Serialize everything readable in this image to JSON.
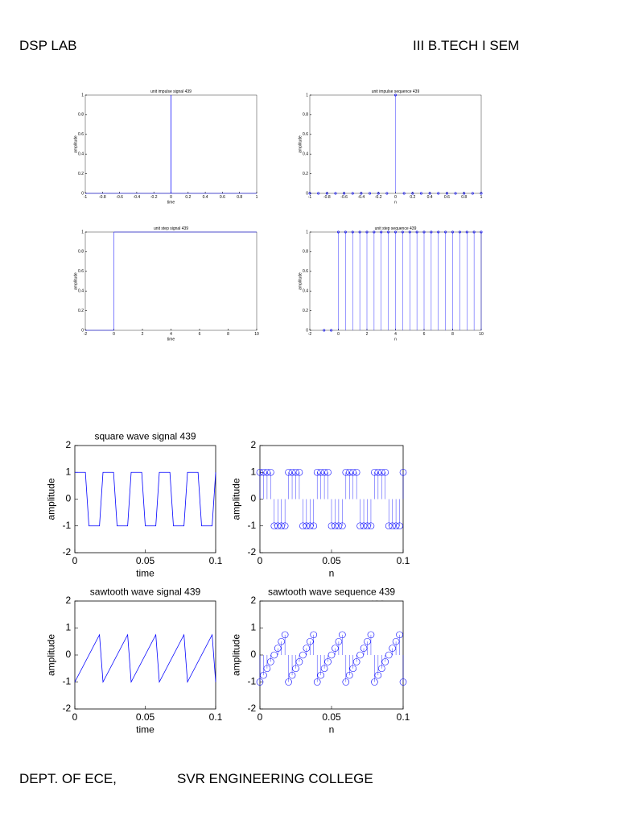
{
  "header": {
    "left": "DSP LAB",
    "right": "III B.TECH I SEM"
  },
  "footer": {
    "left": "DEPT. OF ECE,",
    "right": "SVR ENGINEERING COLLEGE"
  },
  "chart_data": [
    {
      "type": "line",
      "title": "unit impulse signal 439",
      "xlabel": "time",
      "ylabel": "amplitude",
      "color": "#0000ff",
      "x": [
        -1,
        0,
        0,
        0,
        1
      ],
      "values": [
        0,
        0,
        1,
        0,
        0
      ],
      "xlim": [
        -1,
        1
      ],
      "xticks": [
        -1,
        -0.8,
        -0.6,
        -0.4,
        -0.2,
        0,
        0.2,
        0.4,
        0.6,
        0.8,
        1
      ],
      "ylim": [
        0,
        1
      ],
      "yticks": [
        0,
        0.2,
        0.4,
        0.6,
        0.8,
        1
      ]
    },
    {
      "type": "stem",
      "title": "unit impulse sequence 439",
      "xlabel": "n",
      "ylabel": "amplitude",
      "color": "#0000ff",
      "x": [
        -1,
        -0.9,
        -0.8,
        -0.7,
        -0.6,
        -0.5,
        -0.4,
        -0.3,
        -0.2,
        -0.1,
        0,
        0.1,
        0.2,
        0.3,
        0.4,
        0.5,
        0.6,
        0.7,
        0.8,
        0.9,
        1
      ],
      "values": [
        0,
        0,
        0,
        0,
        0,
        0,
        0,
        0,
        0,
        0,
        1,
        0,
        0,
        0,
        0,
        0,
        0,
        0,
        0,
        0,
        0
      ],
      "xlim": [
        -1,
        1
      ],
      "xticks": [
        -1,
        -0.8,
        -0.6,
        -0.4,
        -0.2,
        0,
        0.2,
        0.4,
        0.6,
        0.8,
        1
      ],
      "ylim": [
        0,
        1
      ],
      "yticks": [
        0,
        0.2,
        0.4,
        0.6,
        0.8,
        1
      ]
    },
    {
      "type": "line",
      "title": "unit step signal 439",
      "xlabel": "time",
      "ylabel": "amplitude",
      "color": "#0000ff",
      "x": [
        -2,
        0,
        0,
        10
      ],
      "values": [
        0,
        0,
        1,
        1
      ],
      "xlim": [
        -2,
        10
      ],
      "xticks": [
        -2,
        0,
        2,
        4,
        6,
        8,
        10
      ],
      "ylim": [
        0,
        1
      ],
      "yticks": [
        0,
        0.2,
        0.4,
        0.6,
        0.8,
        1
      ]
    },
    {
      "type": "stem",
      "title": "unit step sequence 439",
      "xlabel": "n",
      "ylabel": "amplitude",
      "color": "#0000ff",
      "x": [
        -1,
        -0.5,
        0,
        0.5,
        1,
        1.5,
        2,
        2.5,
        3,
        3.5,
        4,
        4.5,
        5,
        5.5,
        6,
        6.5,
        7,
        7.5,
        8,
        8.5,
        9,
        9.5,
        10
      ],
      "values": [
        0,
        0,
        1,
        1,
        1,
        1,
        1,
        1,
        1,
        1,
        1,
        1,
        1,
        1,
        1,
        1,
        1,
        1,
        1,
        1,
        1,
        1,
        1
      ],
      "xlim": [
        -2,
        10
      ],
      "xticks": [
        -2,
        0,
        2,
        4,
        6,
        8,
        10
      ],
      "ylim": [
        0,
        1
      ],
      "yticks": [
        0,
        0.2,
        0.4,
        0.6,
        0.8,
        1
      ]
    },
    {
      "type": "line",
      "title": "square wave signal 439",
      "xlabel": "time",
      "ylabel": "amplitude",
      "color": "#0000ff",
      "x": [
        0,
        0.0025,
        0.005,
        0.0075,
        0.01,
        0.0125,
        0.015,
        0.0175,
        0.02,
        0.0225,
        0.025,
        0.0275,
        0.03,
        0.0325,
        0.035,
        0.0375,
        0.04,
        0.0425,
        0.045,
        0.0475,
        0.05,
        0.0525,
        0.055,
        0.0575,
        0.06,
        0.0625,
        0.065,
        0.0675,
        0.07,
        0.0725,
        0.075,
        0.0775,
        0.08,
        0.0825,
        0.085,
        0.0875,
        0.09,
        0.0925,
        0.095,
        0.0975,
        0.1
      ],
      "values": [
        1,
        1,
        1,
        1,
        -1,
        -1,
        -1,
        -1,
        1,
        1,
        1,
        1,
        -1,
        -1,
        -1,
        -1,
        1,
        1,
        1,
        1,
        -1,
        -1,
        -1,
        -1,
        1,
        1,
        1,
        1,
        -1,
        -1,
        -1,
        -1,
        1,
        1,
        1,
        1,
        -1,
        -1,
        -1,
        -1,
        1
      ],
      "xlim": [
        0,
        0.1
      ],
      "xticks": [
        0,
        0.05,
        0.1
      ],
      "ylim": [
        -2,
        2
      ],
      "yticks": [
        -2,
        -1,
        0,
        1,
        2
      ]
    },
    {
      "type": "stem",
      "title": "square wave sequence 439",
      "xlabel": "n",
      "ylabel": "amplitude",
      "color": "#0000ff",
      "x": [
        0,
        0.0025,
        0.005,
        0.0075,
        0.01,
        0.0125,
        0.015,
        0.0175,
        0.02,
        0.0225,
        0.025,
        0.0275,
        0.03,
        0.0325,
        0.035,
        0.0375,
        0.04,
        0.0425,
        0.045,
        0.0475,
        0.05,
        0.0525,
        0.055,
        0.0575,
        0.06,
        0.0625,
        0.065,
        0.0675,
        0.07,
        0.0725,
        0.075,
        0.0775,
        0.08,
        0.0825,
        0.085,
        0.0875,
        0.09,
        0.0925,
        0.095,
        0.0975,
        0.1
      ],
      "values": [
        1,
        1,
        1,
        1,
        -1,
        -1,
        -1,
        -1,
        1,
        1,
        1,
        1,
        -1,
        -1,
        -1,
        -1,
        1,
        1,
        1,
        1,
        -1,
        -1,
        -1,
        -1,
        1,
        1,
        1,
        1,
        -1,
        -1,
        -1,
        -1,
        1,
        1,
        1,
        1,
        -1,
        -1,
        -1,
        -1,
        1
      ],
      "xlim": [
        0,
        0.1
      ],
      "xticks": [
        0,
        0.05,
        0.1
      ],
      "ylim": [
        -2,
        2
      ],
      "yticks": [
        -2,
        -1,
        0,
        1,
        2
      ]
    },
    {
      "type": "line",
      "title": "sawtooth wave signal 439",
      "xlabel": "time",
      "ylabel": "amplitude",
      "color": "#0000ff",
      "x": [
        0,
        0.0025,
        0.005,
        0.0075,
        0.01,
        0.0125,
        0.015,
        0.0175,
        0.02,
        0.0225,
        0.025,
        0.0275,
        0.03,
        0.0325,
        0.035,
        0.0375,
        0.04,
        0.0425,
        0.045,
        0.0475,
        0.05,
        0.0525,
        0.055,
        0.0575,
        0.06,
        0.0625,
        0.065,
        0.0675,
        0.07,
        0.0725,
        0.075,
        0.0775,
        0.08,
        0.0825,
        0.085,
        0.0875,
        0.09,
        0.0925,
        0.095,
        0.0975,
        0.1
      ],
      "values": [
        -1,
        -0.75,
        -0.5,
        -0.25,
        0,
        0.25,
        0.5,
        0.75,
        -1,
        -0.75,
        -0.5,
        -0.25,
        0,
        0.25,
        0.5,
        0.75,
        -1,
        -0.75,
        -0.5,
        -0.25,
        0,
        0.25,
        0.5,
        0.75,
        -1,
        -0.75,
        -0.5,
        -0.25,
        0,
        0.25,
        0.5,
        0.75,
        -1,
        -0.75,
        -0.5,
        -0.25,
        0,
        0.25,
        0.5,
        0.75,
        -1
      ],
      "xlim": [
        0,
        0.1
      ],
      "xticks": [
        0,
        0.05,
        0.1
      ],
      "ylim": [
        -2,
        2
      ],
      "yticks": [
        -2,
        -1,
        0,
        1,
        2
      ]
    },
    {
      "type": "stem",
      "title": "sawtooth wave sequence 439",
      "xlabel": "n",
      "ylabel": "amplitude",
      "color": "#0000ff",
      "x": [
        0,
        0.0025,
        0.005,
        0.0075,
        0.01,
        0.0125,
        0.015,
        0.0175,
        0.02,
        0.0225,
        0.025,
        0.0275,
        0.03,
        0.0325,
        0.035,
        0.0375,
        0.04,
        0.0425,
        0.045,
        0.0475,
        0.05,
        0.0525,
        0.055,
        0.0575,
        0.06,
        0.0625,
        0.065,
        0.0675,
        0.07,
        0.0725,
        0.075,
        0.0775,
        0.08,
        0.0825,
        0.085,
        0.0875,
        0.09,
        0.0925,
        0.095,
        0.0975,
        0.1
      ],
      "values": [
        -1,
        -0.75,
        -0.5,
        -0.25,
        0,
        0.25,
        0.5,
        0.75,
        -1,
        -0.75,
        -0.5,
        -0.25,
        0,
        0.25,
        0.5,
        0.75,
        -1,
        -0.75,
        -0.5,
        -0.25,
        0,
        0.25,
        0.5,
        0.75,
        -1,
        -0.75,
        -0.5,
        -0.25,
        0,
        0.25,
        0.5,
        0.75,
        -1,
        -0.75,
        -0.5,
        -0.25,
        0,
        0.25,
        0.5,
        0.75,
        -1
      ],
      "xlim": [
        0,
        0.1
      ],
      "xticks": [
        0,
        0.05,
        0.1
      ],
      "ylim": [
        -2,
        2
      ],
      "yticks": [
        -2,
        -1,
        0,
        1,
        2
      ]
    }
  ]
}
